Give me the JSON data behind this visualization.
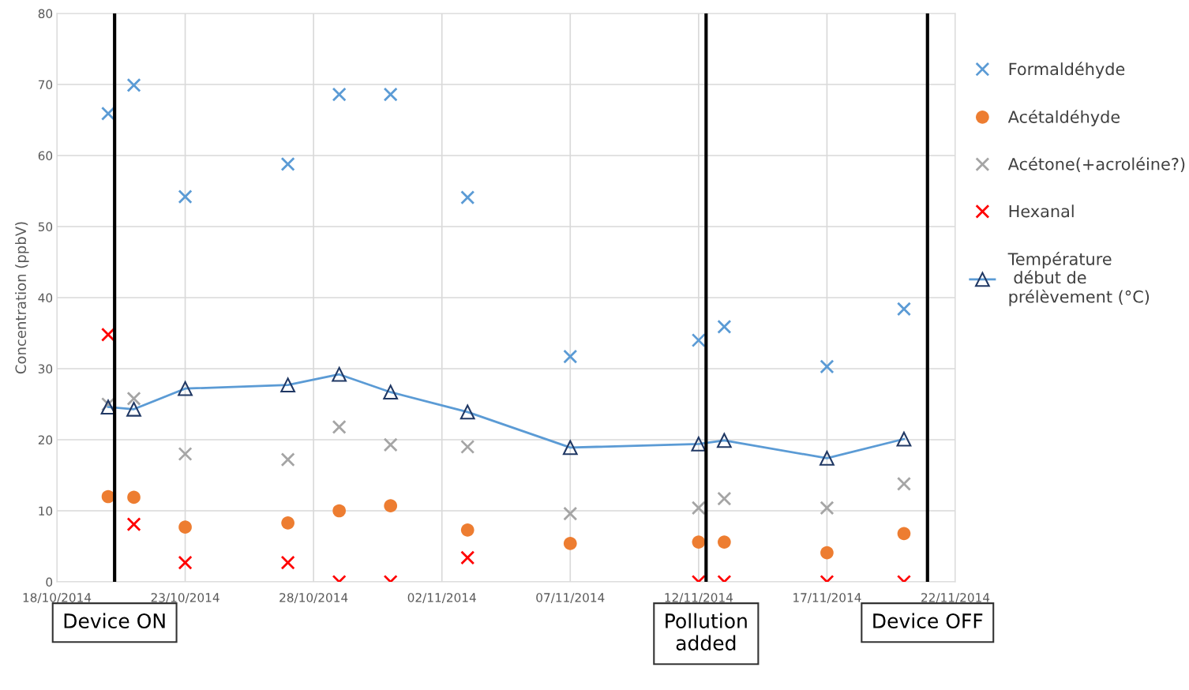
{
  "chart_data": {
    "type": "scatter",
    "ylabel": "Concentration (ppbV)",
    "x": [
      "2014-10-20",
      "2014-10-21",
      "2014-10-23",
      "2014-10-27",
      "2014-10-29",
      "2014-10-31",
      "2014-11-03",
      "2014-11-07",
      "2014-11-12",
      "2014-11-13",
      "2014-11-17",
      "2014-11-20"
    ],
    "series": [
      {
        "name": "Formaldéhyde",
        "color": "#5b9bd5",
        "marker": "cross",
        "values": [
          65.9,
          69.9,
          54.2,
          58.8,
          68.6,
          68.6,
          54.1,
          31.7,
          34,
          35.9,
          30.3,
          38.4
        ]
      },
      {
        "name": "Acétaldéhyde",
        "color": "#ed7d31",
        "marker": "circle",
        "values": [
          12,
          11.9,
          7.7,
          8.3,
          10,
          10.7,
          7.3,
          5.4,
          5.6,
          5.6,
          4.1,
          6.8
        ]
      },
      {
        "name": "Acétone(+acroléine?)",
        "color": "#a5a5a5",
        "marker": "cross",
        "values": [
          25,
          25.8,
          18,
          17.2,
          21.8,
          19.3,
          19,
          9.6,
          10.4,
          11.7,
          10.4,
          13.8
        ]
      },
      {
        "name": "Hexanal",
        "color": "#ff0000",
        "marker": "cross",
        "values": [
          34.8,
          8.1,
          2.7,
          2.7,
          0,
          0,
          3.4,
          null,
          0,
          0,
          0,
          0
        ]
      },
      {
        "name": "Température\n début de\nprélèvement (°C)",
        "type": "line",
        "color": "#5b9bd5",
        "marker": "triangle",
        "values": [
          24.6,
          24.3,
          27.2,
          27.7,
          29.2,
          26.7,
          23.9,
          18.9,
          19.4,
          19.9,
          17.4,
          20.1
        ]
      }
    ],
    "xlim": [
      "2014-10-18",
      "2014-11-22"
    ],
    "xticks": [
      {
        "value": "2014-10-18",
        "label": "18/10/2014"
      },
      {
        "value": "2014-10-23",
        "label": "23/10/2014"
      },
      {
        "value": "2014-10-28",
        "label": "28/10/2014"
      },
      {
        "value": "2014-11-02",
        "label": "02/11/2014"
      },
      {
        "value": "2014-11-07",
        "label": "07/11/2014"
      },
      {
        "value": "2014-11-12",
        "label": "12/11/2014"
      },
      {
        "value": "2014-11-17",
        "label": "17/11/2014"
      },
      {
        "value": "2014-11-22",
        "label": "22/11/2014"
      }
    ],
    "ylim": [
      0,
      80
    ],
    "yticks": [
      0,
      10,
      20,
      30,
      40,
      50,
      60,
      70,
      80
    ],
    "ref_lines": [
      {
        "axis": "x",
        "value": "2014-10-20T06:00",
        "label": "Device ON",
        "color": "#000000"
      },
      {
        "axis": "x",
        "value": "2014-11-12T07:00",
        "label": "Pollution\nadded",
        "color": "#000000"
      },
      {
        "axis": "x",
        "value": "2014-11-20T22:00",
        "label": "Device OFF",
        "color": "#000000"
      }
    ],
    "grid": true,
    "legend": "right"
  }
}
